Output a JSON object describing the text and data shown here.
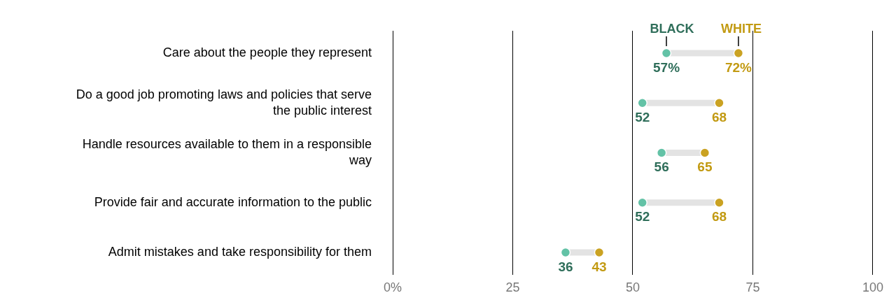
{
  "chart_data": {
    "type": "scatter",
    "orientation": "horizontal",
    "categories": [
      "Care about the people they represent",
      "Do a good job promoting laws and policies that serve the public interest",
      "Handle resources available to them in a responsible way",
      "Provide fair and accurate information to the public",
      "Admit mistakes and take responsibility for them"
    ],
    "series": [
      {
        "name": "BLACK",
        "color": "#63c2a6",
        "values": [
          57,
          52,
          56,
          52,
          36
        ],
        "value_labels": [
          "57%",
          "52",
          "56",
          "52",
          "36"
        ]
      },
      {
        "name": "WHITE",
        "color": "#caa222",
        "values": [
          72,
          68,
          65,
          68,
          43
        ],
        "value_labels": [
          "72%",
          "68",
          "65",
          "68",
          "43"
        ]
      }
    ],
    "xlim": [
      0,
      100
    ],
    "xticks": [
      {
        "value": 0,
        "label": "0%"
      },
      25,
      50,
      75,
      {
        "value": 100,
        "label": "100"
      }
    ],
    "grid": "x",
    "legend": false,
    "marker": "circle"
  }
}
